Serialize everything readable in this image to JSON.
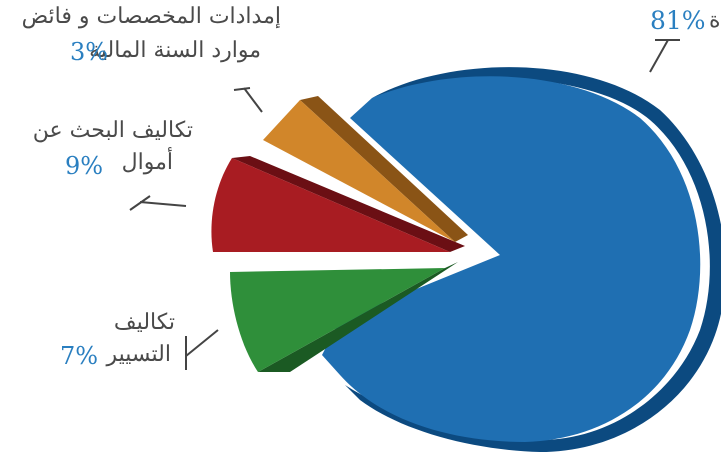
{
  "chart_data": {
    "type": "pie",
    "title": "",
    "style": "3d-exploded",
    "slices": [
      {
        "label": "",
        "percent_label": "81%",
        "value": 81,
        "color": "#1f6fb2",
        "side_color": "#0c4a80"
      },
      {
        "label_line1": "إمدادات المخصصات و فائض",
        "label_line2": "موارد السنة المالية",
        "percent_label": "3%",
        "value": 3,
        "color": "#d1862a",
        "side_color": "#8a5416"
      },
      {
        "label_line1": "تكاليف البحث عن",
        "label_line2": "أموال",
        "percent_label": "9%",
        "value": 9,
        "color": "#a81c22",
        "side_color": "#6b0f14"
      },
      {
        "label_line1": "تكاليف",
        "label_line2": "التسيير",
        "percent_label": "7%",
        "value": 7,
        "color": "#2f8f3a",
        "side_color": "#1b5a23"
      }
    ]
  }
}
